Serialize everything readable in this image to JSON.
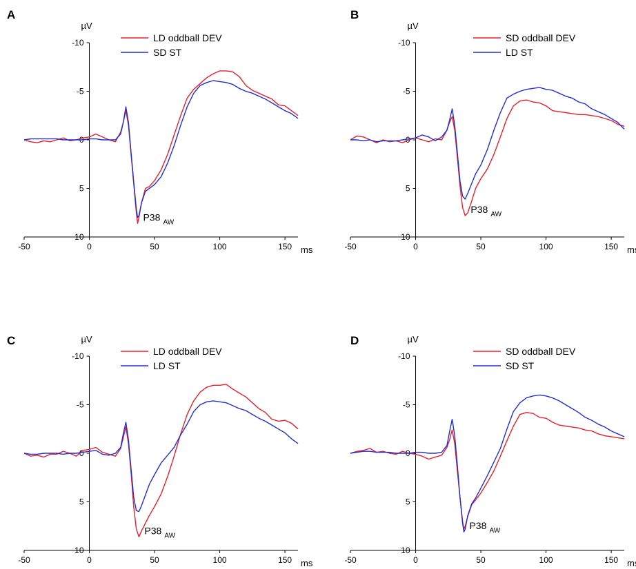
{
  "colors": {
    "red": "#e8202a",
    "blue": "#1f2fd6"
  },
  "chart_data": [
    {
      "type": "line",
      "panel": "A",
      "y_unit": "µV",
      "x_unit": "ms",
      "xlim": [
        -50,
        160
      ],
      "ylim": [
        10,
        -10
      ],
      "x_ticks": [
        -50,
        0,
        50,
        100,
        150
      ],
      "x_tick_labels": [
        "-50",
        "0",
        "50",
        "100",
        "150"
      ],
      "y_ticks": [
        -10,
        -5,
        0,
        5,
        10
      ],
      "y_tick_labels": [
        "-10",
        "-5",
        "0",
        "5",
        "10"
      ],
      "legend_position": "top-center",
      "peak_label": {
        "text": "P38",
        "sub": "AW",
        "x": 37,
        "y": 8.6
      },
      "series": [
        {
          "name": "LD oddball DEV",
          "color": "red",
          "x": [
            -50,
            -45,
            -40,
            -35,
            -30,
            -25,
            -20,
            -15,
            -10,
            -5,
            0,
            5,
            10,
            15,
            20,
            24,
            26,
            28,
            30,
            32,
            34,
            36,
            37,
            38,
            40,
            43,
            46,
            50,
            55,
            60,
            65,
            70,
            75,
            80,
            85,
            90,
            95,
            100,
            105,
            110,
            115,
            120,
            125,
            130,
            135,
            140,
            145,
            150,
            155,
            160
          ],
          "y": [
            0,
            0.2,
            0.3,
            0.1,
            0.2,
            0,
            -0.2,
            0.1,
            0,
            -0.2,
            -0.3,
            -0.6,
            -0.3,
            0,
            0.2,
            -0.8,
            -1.8,
            -3,
            -1.5,
            1.5,
            4.5,
            7.5,
            8.6,
            8,
            6.5,
            5,
            4.8,
            4.2,
            3.1,
            1.5,
            -0.5,
            -2.5,
            -4.3,
            -5.2,
            -5.8,
            -6.4,
            -6.8,
            -7.1,
            -7.1,
            -7,
            -6.5,
            -5.6,
            -5.1,
            -4.8,
            -4.5,
            -4.2,
            -3.6,
            -3.5,
            -3,
            -2.5
          ]
        },
        {
          "name": "SD ST",
          "color": "blue",
          "x": [
            -50,
            -45,
            -40,
            -35,
            -30,
            -25,
            -20,
            -15,
            -10,
            -5,
            0,
            5,
            10,
            15,
            20,
            24,
            26,
            28,
            30,
            32,
            34,
            36,
            37,
            38,
            40,
            43,
            46,
            50,
            55,
            60,
            65,
            70,
            75,
            80,
            85,
            90,
            95,
            100,
            105,
            110,
            115,
            120,
            125,
            130,
            135,
            140,
            145,
            150,
            155,
            160
          ],
          "y": [
            0,
            -0.1,
            -0.1,
            -0.1,
            -0.1,
            -0.1,
            0,
            0,
            0,
            0,
            -0.1,
            -0.1,
            0,
            0,
            0,
            -0.6,
            -1.8,
            -3.4,
            -1.8,
            1.3,
            4.3,
            7.1,
            8,
            7.8,
            6.5,
            5.3,
            5,
            4.6,
            3.8,
            2.4,
            0.6,
            -1.5,
            -3.4,
            -4.8,
            -5.6,
            -5.9,
            -6.1,
            -6,
            -5.9,
            -5.7,
            -5.3,
            -5,
            -4.8,
            -4.5,
            -4.2,
            -3.8,
            -3.4,
            -3,
            -2.7,
            -2.2
          ]
        }
      ]
    },
    {
      "type": "line",
      "panel": "B",
      "y_unit": "µV",
      "x_unit": "ms",
      "xlim": [
        -50,
        160
      ],
      "ylim": [
        10,
        -10
      ],
      "x_ticks": [
        -50,
        0,
        50,
        100,
        150
      ],
      "x_tick_labels": [
        "-50",
        "0",
        "50",
        "100",
        "150"
      ],
      "y_ticks": [
        -10,
        -5,
        0,
        5,
        10
      ],
      "y_tick_labels": [
        "-10",
        "-5",
        "0",
        "5",
        "10"
      ],
      "legend_position": "top-center",
      "peak_label": {
        "text": "P38",
        "sub": "AW",
        "x": 38,
        "y": 7.8
      },
      "series": [
        {
          "name": "SD oddball DEV",
          "color": "red",
          "x": [
            -50,
            -45,
            -40,
            -35,
            -30,
            -25,
            -20,
            -15,
            -10,
            -5,
            0,
            5,
            10,
            15,
            20,
            24,
            26,
            28,
            30,
            32,
            34,
            36,
            38,
            40,
            43,
            46,
            50,
            55,
            60,
            65,
            70,
            75,
            80,
            85,
            90,
            95,
            100,
            105,
            110,
            115,
            120,
            125,
            130,
            135,
            140,
            145,
            150,
            155,
            160
          ],
          "y": [
            0,
            -0.4,
            -0.3,
            0,
            0.3,
            0,
            0.2,
            0.1,
            0.3,
            0,
            -0.2,
            0,
            0.2,
            -0.1,
            0,
            -1,
            -1.8,
            -2.4,
            -1,
            1.8,
            4.7,
            7,
            7.8,
            7.5,
            6.3,
            5,
            4,
            3,
            1.5,
            -0.3,
            -2.2,
            -3.5,
            -4,
            -4.1,
            -3.9,
            -3.8,
            -3.5,
            -3,
            -2.9,
            -2.8,
            -2.7,
            -2.6,
            -2.6,
            -2.5,
            -2.4,
            -2.2,
            -2,
            -1.6,
            -1.4
          ]
        },
        {
          "name": "LD ST",
          "color": "blue",
          "x": [
            -50,
            -45,
            -40,
            -35,
            -30,
            -25,
            -20,
            -15,
            -10,
            -5,
            0,
            5,
            10,
            15,
            20,
            24,
            26,
            28,
            30,
            32,
            34,
            36,
            38,
            40,
            43,
            46,
            50,
            55,
            60,
            65,
            70,
            75,
            80,
            85,
            90,
            95,
            100,
            105,
            110,
            115,
            120,
            125,
            130,
            135,
            140,
            145,
            150,
            155,
            160
          ],
          "y": [
            0,
            0,
            0.1,
            0,
            0.2,
            0.1,
            0.1,
            0.1,
            0,
            -0.1,
            -0.2,
            -0.5,
            -0.3,
            0.1,
            -0.3,
            -1,
            -2,
            -3.2,
            -1.5,
            1.3,
            4.2,
            5.8,
            6.1,
            5.5,
            4.5,
            3.5,
            2.6,
            1,
            -1,
            -2.8,
            -4.3,
            -4.7,
            -5,
            -5.2,
            -5.3,
            -5.4,
            -5.2,
            -5.1,
            -4.8,
            -4.5,
            -4.3,
            -3.9,
            -3.7,
            -3.2,
            -2.9,
            -2.6,
            -2.2,
            -1.8,
            -1.1
          ]
        }
      ]
    },
    {
      "type": "line",
      "panel": "C",
      "y_unit": "µV",
      "x_unit": "ms",
      "xlim": [
        -50,
        160
      ],
      "ylim": [
        10,
        -10
      ],
      "x_ticks": [
        -50,
        0,
        50,
        100,
        150
      ],
      "x_tick_labels": [
        "-50",
        "0",
        "50",
        "100",
        "150"
      ],
      "y_ticks": [
        -10,
        -5,
        0,
        5,
        10
      ],
      "y_tick_labels": [
        "-10",
        "-5",
        "0",
        "5",
        "10"
      ],
      "legend_position": "top-center",
      "peak_label": {
        "text": "P38",
        "sub": "AW",
        "x": 38,
        "y": 8.6
      },
      "series": [
        {
          "name": "LD oddball DEV",
          "color": "red",
          "x": [
            -50,
            -45,
            -40,
            -35,
            -30,
            -25,
            -20,
            -15,
            -10,
            -5,
            0,
            5,
            10,
            15,
            20,
            24,
            26,
            28,
            30,
            32,
            34,
            36,
            38,
            40,
            43,
            46,
            50,
            55,
            60,
            65,
            70,
            75,
            80,
            85,
            90,
            95,
            100,
            105,
            110,
            115,
            120,
            125,
            130,
            135,
            140,
            145,
            150,
            155,
            160
          ],
          "y": [
            0,
            0.3,
            0.2,
            0.4,
            0.1,
            0.1,
            -0.2,
            0,
            0.3,
            -0.3,
            -0.4,
            -0.6,
            -0.1,
            0.1,
            0.3,
            -0.5,
            -1.6,
            -2.7,
            -1,
            2,
            5.5,
            7.8,
            8.6,
            8,
            7.2,
            6.4,
            5.5,
            4.2,
            2.4,
            0.3,
            -2,
            -4,
            -5.4,
            -6.3,
            -6.8,
            -7,
            -7,
            -7.1,
            -6.6,
            -6.2,
            -5.8,
            -5.2,
            -4.6,
            -4.2,
            -3.5,
            -3.3,
            -3.4,
            -3.1,
            -2.5
          ]
        },
        {
          "name": "LD ST",
          "color": "blue",
          "x": [
            -50,
            -45,
            -40,
            -35,
            -30,
            -25,
            -20,
            -15,
            -10,
            -5,
            0,
            5,
            10,
            15,
            20,
            24,
            26,
            28,
            30,
            32,
            34,
            36,
            38,
            40,
            43,
            46,
            50,
            55,
            60,
            65,
            70,
            75,
            80,
            85,
            90,
            95,
            100,
            105,
            110,
            115,
            120,
            125,
            130,
            135,
            140,
            145,
            150,
            155,
            160
          ],
          "y": [
            0,
            0.1,
            0.1,
            0,
            0,
            0,
            0.1,
            0,
            0,
            -0.1,
            -0.2,
            -0.3,
            0.1,
            0.2,
            0,
            -0.6,
            -2,
            -3.2,
            -1.4,
            1.6,
            4.5,
            5.9,
            6,
            5.4,
            4.3,
            3.2,
            2.2,
            1,
            0.2,
            -0.6,
            -1.9,
            -3,
            -4.3,
            -5,
            -5.3,
            -5.4,
            -5.3,
            -5.2,
            -4.9,
            -4.6,
            -4.4,
            -4,
            -3.6,
            -3.3,
            -2.9,
            -2.5,
            -2.1,
            -1.5,
            -1
          ]
        }
      ]
    },
    {
      "type": "line",
      "panel": "D",
      "y_unit": "µV",
      "x_unit": "ms",
      "xlim": [
        -50,
        160
      ],
      "ylim": [
        10,
        -10
      ],
      "x_ticks": [
        -50,
        0,
        50,
        100,
        150
      ],
      "x_tick_labels": [
        "-50",
        "0",
        "50",
        "100",
        "150"
      ],
      "y_ticks": [
        -10,
        -5,
        0,
        5,
        10
      ],
      "y_tick_labels": [
        "-10",
        "-5",
        "0",
        "5",
        "10"
      ],
      "legend_position": "top-center",
      "peak_label": {
        "text": "P38",
        "sub": "AW",
        "x": 37,
        "y": 8.1
      },
      "series": [
        {
          "name": "SD oddball DEV",
          "color": "red",
          "x": [
            -50,
            -45,
            -40,
            -35,
            -30,
            -25,
            -20,
            -15,
            -10,
            -5,
            0,
            5,
            10,
            15,
            20,
            24,
            26,
            28,
            30,
            32,
            34,
            36,
            37,
            38,
            40,
            43,
            46,
            50,
            55,
            60,
            65,
            70,
            75,
            80,
            85,
            90,
            95,
            100,
            105,
            110,
            115,
            120,
            125,
            130,
            135,
            140,
            145,
            150,
            155,
            160
          ],
          "y": [
            0,
            -0.2,
            -0.3,
            -0.5,
            -0.1,
            -0.2,
            0,
            0.1,
            -0.2,
            0,
            0.1,
            0.3,
            0.6,
            0.4,
            0.2,
            -0.6,
            -1.4,
            -2.4,
            -1,
            1.8,
            4.5,
            7,
            7.8,
            7.5,
            6.5,
            5.3,
            4.8,
            4.1,
            3,
            1.8,
            0.3,
            -1.3,
            -2.8,
            -4,
            -4.2,
            -4.1,
            -3.7,
            -3.6,
            -3.2,
            -2.9,
            -2.8,
            -2.7,
            -2.6,
            -2.4,
            -2.3,
            -2,
            -1.8,
            -1.7,
            -1.6,
            -1.5
          ]
        },
        {
          "name": "SD ST",
          "color": "blue",
          "x": [
            -50,
            -45,
            -40,
            -35,
            -30,
            -25,
            -20,
            -15,
            -10,
            -5,
            0,
            5,
            10,
            15,
            20,
            24,
            26,
            28,
            30,
            32,
            34,
            36,
            37,
            38,
            40,
            43,
            46,
            50,
            55,
            60,
            65,
            70,
            75,
            80,
            85,
            90,
            95,
            100,
            105,
            110,
            115,
            120,
            125,
            130,
            135,
            140,
            145,
            150,
            155,
            160
          ],
          "y": [
            0,
            -0.1,
            -0.2,
            -0.2,
            -0.1,
            -0.1,
            -0.1,
            0,
            0,
            0,
            -0.1,
            -0.1,
            0,
            0,
            -0.1,
            -0.8,
            -2.2,
            -3.5,
            -1.8,
            1.2,
            4.5,
            7.2,
            8.1,
            7.8,
            6.4,
            5.2,
            4.6,
            3.6,
            2.3,
            0.9,
            -0.5,
            -2.5,
            -4.3,
            -5.2,
            -5.7,
            -5.9,
            -6,
            -5.9,
            -5.7,
            -5.4,
            -5,
            -4.6,
            -4.2,
            -3.7,
            -3.4,
            -3,
            -2.7,
            -2.3,
            -2,
            -1.7
          ]
        }
      ]
    }
  ]
}
